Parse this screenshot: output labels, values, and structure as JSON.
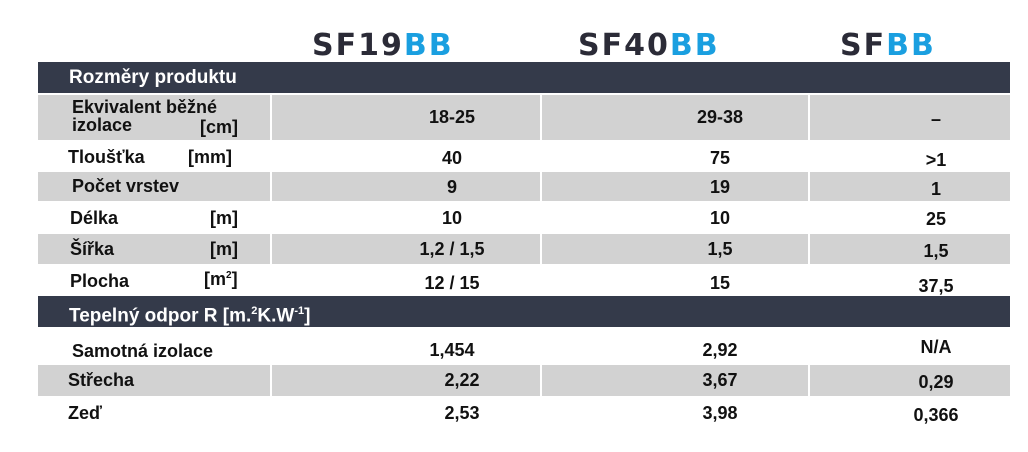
{
  "brands": [
    {
      "main": "SF19",
      "accent": "BB"
    },
    {
      "main": "SF40",
      "accent": "BB"
    },
    {
      "main": "SF",
      "accent": "BB"
    }
  ],
  "colors": {
    "brand_dark": "#2b2b37",
    "brand_accent": "#1a9fe0",
    "header_bar": "#343a4a",
    "row_shade": "#d2d2d2"
  },
  "sections": {
    "dimensions_title": "Rozměry produktu",
    "thermal": {
      "prefix": "Tepelný odpor R [m.",
      "sup1": "2",
      "mid": "K.W",
      "sup2": "-1",
      "suffix": "]"
    }
  },
  "rows": {
    "equivalent": {
      "label_line1": "Ekvivalent běžné",
      "label_line2": "izolace",
      "unit": "[cm]",
      "values": [
        "18-25",
        "29-38",
        "–"
      ]
    },
    "thickness": {
      "label": "Tloušťka",
      "unit": "[mm]",
      "values": [
        "40",
        "75",
        ">1"
      ]
    },
    "layers": {
      "label": "Počet vrstev",
      "unit": "",
      "values": [
        "9",
        "19",
        "1"
      ]
    },
    "length": {
      "label": "Délka",
      "unit": "[m]",
      "values": [
        "10",
        "10",
        "25"
      ]
    },
    "width": {
      "label": "Šířka",
      "unit": "[m]",
      "values": [
        "1,2 / 1,5",
        "1,5",
        "1,5"
      ]
    },
    "area": {
      "label": "Plocha",
      "unit_base": "[m",
      "unit_sup": "2",
      "unit_close": "]",
      "values": [
        "12 / 15",
        "15",
        "37,5"
      ]
    },
    "insulation_alone": {
      "label": "Samotná izolace",
      "values": [
        "1,454",
        "2,92",
        "N/A"
      ]
    },
    "roof": {
      "label": "Střecha",
      "values": [
        "2,22",
        "3,67",
        "0,29"
      ]
    },
    "wall": {
      "label": "Zeď",
      "values": [
        "2,53",
        "3,98",
        "0,366"
      ]
    }
  }
}
